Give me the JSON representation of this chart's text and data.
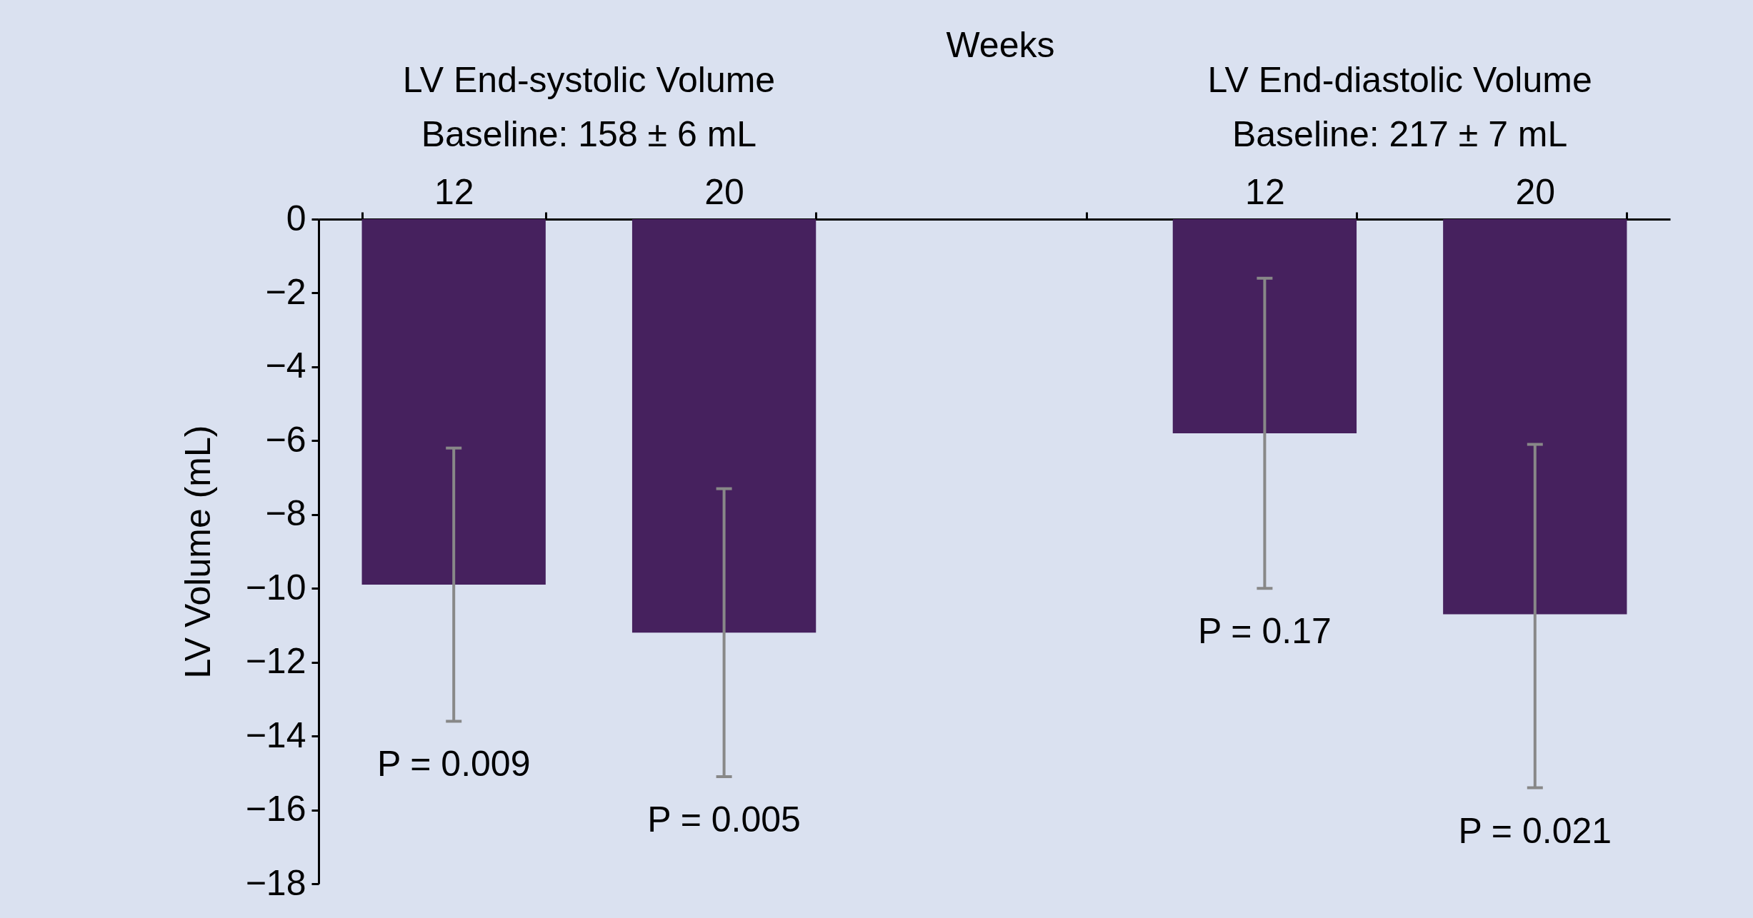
{
  "chart_data": {
    "type": "bar",
    "xlabel": "Weeks",
    "ylabel": "LV Volume (mL)",
    "categories": [
      "12",
      "20",
      null,
      "12",
      "20"
    ],
    "values": [
      -9.9,
      -11.2,
      null,
      -5.8,
      -10.7
    ],
    "errors": [
      [
        -13.6,
        -6.2
      ],
      [
        -15.1,
        -7.3
      ],
      null,
      [
        -10.0,
        -1.6
      ],
      [
        -15.4,
        -6.1
      ]
    ],
    "color": "#46215e",
    "ylim": [
      -18,
      0
    ],
    "yticks": [
      0,
      {
        "value": -2,
        "label": "−2"
      },
      {
        "value": -4,
        "label": "−4"
      },
      {
        "value": -6,
        "label": "−6"
      },
      {
        "value": -8,
        "label": "−8"
      },
      {
        "value": -10,
        "label": "−10"
      },
      {
        "value": -12,
        "label": "−12"
      },
      {
        "value": -14,
        "label": "−14"
      },
      {
        "value": -16,
        "label": "−16"
      },
      {
        "value": -18,
        "label": "−18"
      }
    ],
    "annotations": [
      "LV End-systolic Volume\nBaseline: 158 ± 6 mL",
      "LV End-diastolic Volume\nBaseline: 217 ± 7 mL",
      "P = 0.009",
      "P = 0.005",
      "P = 0.17",
      "P = 0.021"
    ],
    "grid": false
  }
}
